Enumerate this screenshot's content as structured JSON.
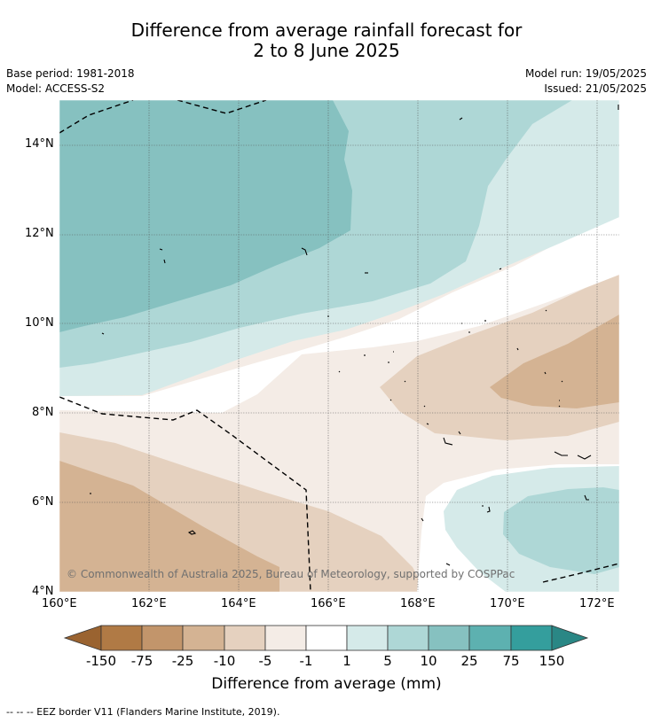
{
  "title": {
    "line1": "Difference from average rainfall forecast for",
    "line2": "2 to 8 June 2025"
  },
  "meta": {
    "base_period": "Base period: 1981-2018",
    "model": "Model: ACCESS-S2",
    "model_run": "Model run: 19/05/2025",
    "issued": "Issued: 21/05/2025"
  },
  "axes": {
    "y_ticks": [
      "14°N",
      "12°N",
      "10°N",
      "8°N",
      "6°N",
      "4°N"
    ],
    "x_ticks": [
      "160°E",
      "162°E",
      "164°E",
      "166°E",
      "168°E",
      "170°E",
      "172°E"
    ]
  },
  "copyright": "© Commonwealth of Australia 2025, Bureau of Meteorology, supported by COSPPac",
  "colorbar": {
    "title": "Difference from average (mm)",
    "ticks": [
      "-150",
      "-75",
      "-25",
      "-10",
      "-5",
      "-1",
      "1",
      "5",
      "10",
      "25",
      "75",
      "150"
    ],
    "colors": [
      "#9a6330",
      "#b07a45",
      "#c2956b",
      "#d4b393",
      "#e5d1bf",
      "#f4ece6",
      "#ffffff",
      "#d5eae9",
      "#aed7d6",
      "#86c1c0",
      "#5db1b0",
      "#349e9d",
      "#2a8785"
    ]
  },
  "footer": "--  --  -- EEZ border V11 (Flanders Marine Institute, 2019)."
}
